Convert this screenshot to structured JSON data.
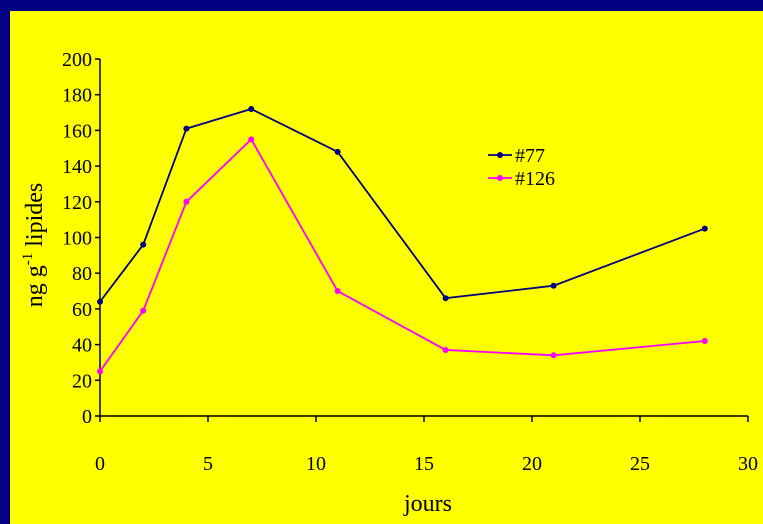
{
  "colors": {
    "frame": "#000080",
    "background": "#ffff00",
    "axis": "#000000"
  },
  "chart_data": {
    "type": "line",
    "title": "",
    "xlabel": "jours",
    "ylabel": "ng g",
    "ylabel_superscript": "-1",
    "ylabel_suffix": " lipides",
    "xlim": [
      0,
      30
    ],
    "ylim": [
      0,
      200
    ],
    "x_ticks": [
      0,
      5,
      10,
      15,
      20,
      25,
      30
    ],
    "y_ticks": [
      0,
      20,
      40,
      60,
      80,
      100,
      120,
      140,
      160,
      180,
      200
    ],
    "grid": false,
    "legend_position": "top-center",
    "series": [
      {
        "name": "#77",
        "color": "#000080",
        "x": [
          0,
          2,
          4,
          7,
          11,
          16,
          21,
          28
        ],
        "y": [
          64,
          96,
          161,
          172,
          148,
          66,
          73,
          105
        ]
      },
      {
        "name": "#126",
        "color": "#ff00ff",
        "x": [
          0,
          2,
          4,
          7,
          11,
          16,
          21,
          28
        ],
        "y": [
          25,
          59,
          120,
          155,
          70,
          37,
          34,
          42
        ]
      }
    ]
  }
}
